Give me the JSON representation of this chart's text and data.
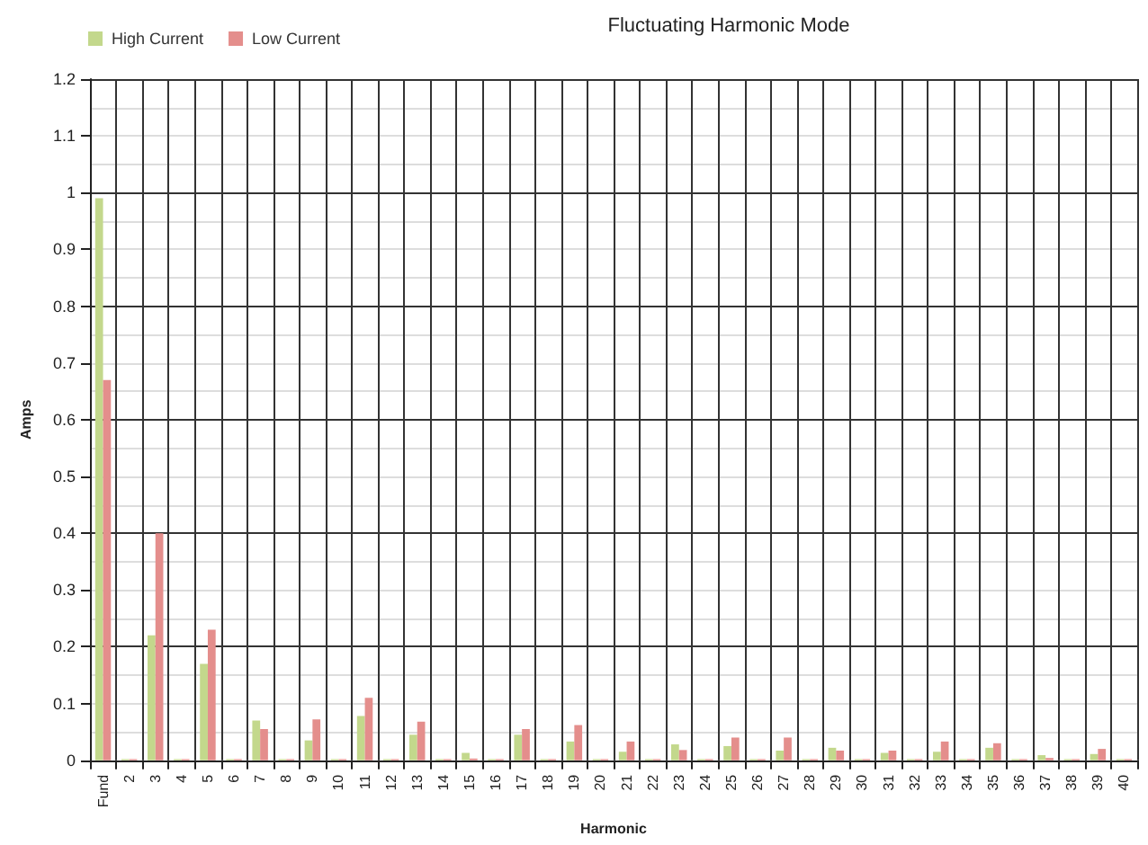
{
  "chart_data": {
    "type": "bar",
    "title": "Fluctuating Harmonic Mode",
    "xlabel": "Harmonic",
    "ylabel": "Amps",
    "categories": [
      "Fund",
      "2",
      "3",
      "4",
      "5",
      "6",
      "7",
      "8",
      "9",
      "10",
      "11",
      "12",
      "13",
      "14",
      "15",
      "16",
      "17",
      "18",
      "19",
      "20",
      "21",
      "22",
      "23",
      "24",
      "25",
      "26",
      "27",
      "28",
      "29",
      "30",
      "31",
      "32",
      "33",
      "34",
      "35",
      "36",
      "37",
      "38",
      "39",
      "40"
    ],
    "series": [
      {
        "name": "High Current",
        "color": "#c3d88c",
        "values": [
          0.99,
          0.002,
          0.22,
          0.002,
          0.17,
          0.002,
          0.07,
          0.002,
          0.035,
          0.002,
          0.078,
          0.002,
          0.045,
          0.002,
          0.013,
          0.002,
          0.045,
          0.002,
          0.033,
          0.002,
          0.015,
          0.002,
          0.028,
          0.002,
          0.025,
          0.002,
          0.017,
          0.002,
          0.022,
          0.002,
          0.013,
          0.002,
          0.015,
          0.002,
          0.022,
          0.002,
          0.009,
          0.002,
          0.011,
          0.002
        ]
      },
      {
        "name": "Low Current",
        "color": "#e48e8c",
        "values": [
          0.67,
          0.002,
          0.4,
          0.002,
          0.23,
          0.002,
          0.055,
          0.002,
          0.072,
          0.002,
          0.11,
          0.002,
          0.068,
          0.002,
          0.003,
          0.002,
          0.055,
          0.002,
          0.062,
          0.002,
          0.033,
          0.002,
          0.018,
          0.002,
          0.04,
          0.002,
          0.04,
          0.002,
          0.017,
          0.002,
          0.017,
          0.002,
          0.033,
          0.002,
          0.03,
          0.002,
          0.004,
          0.002,
          0.02,
          0.002
        ]
      }
    ],
    "ylim": [
      0,
      1.2
    ],
    "yticks": [
      0,
      0.1,
      0.2,
      0.3,
      0.4,
      0.5,
      0.6,
      0.7,
      0.8,
      0.9,
      1,
      1.1,
      1.2
    ],
    "grid": true,
    "legend": "top left"
  }
}
